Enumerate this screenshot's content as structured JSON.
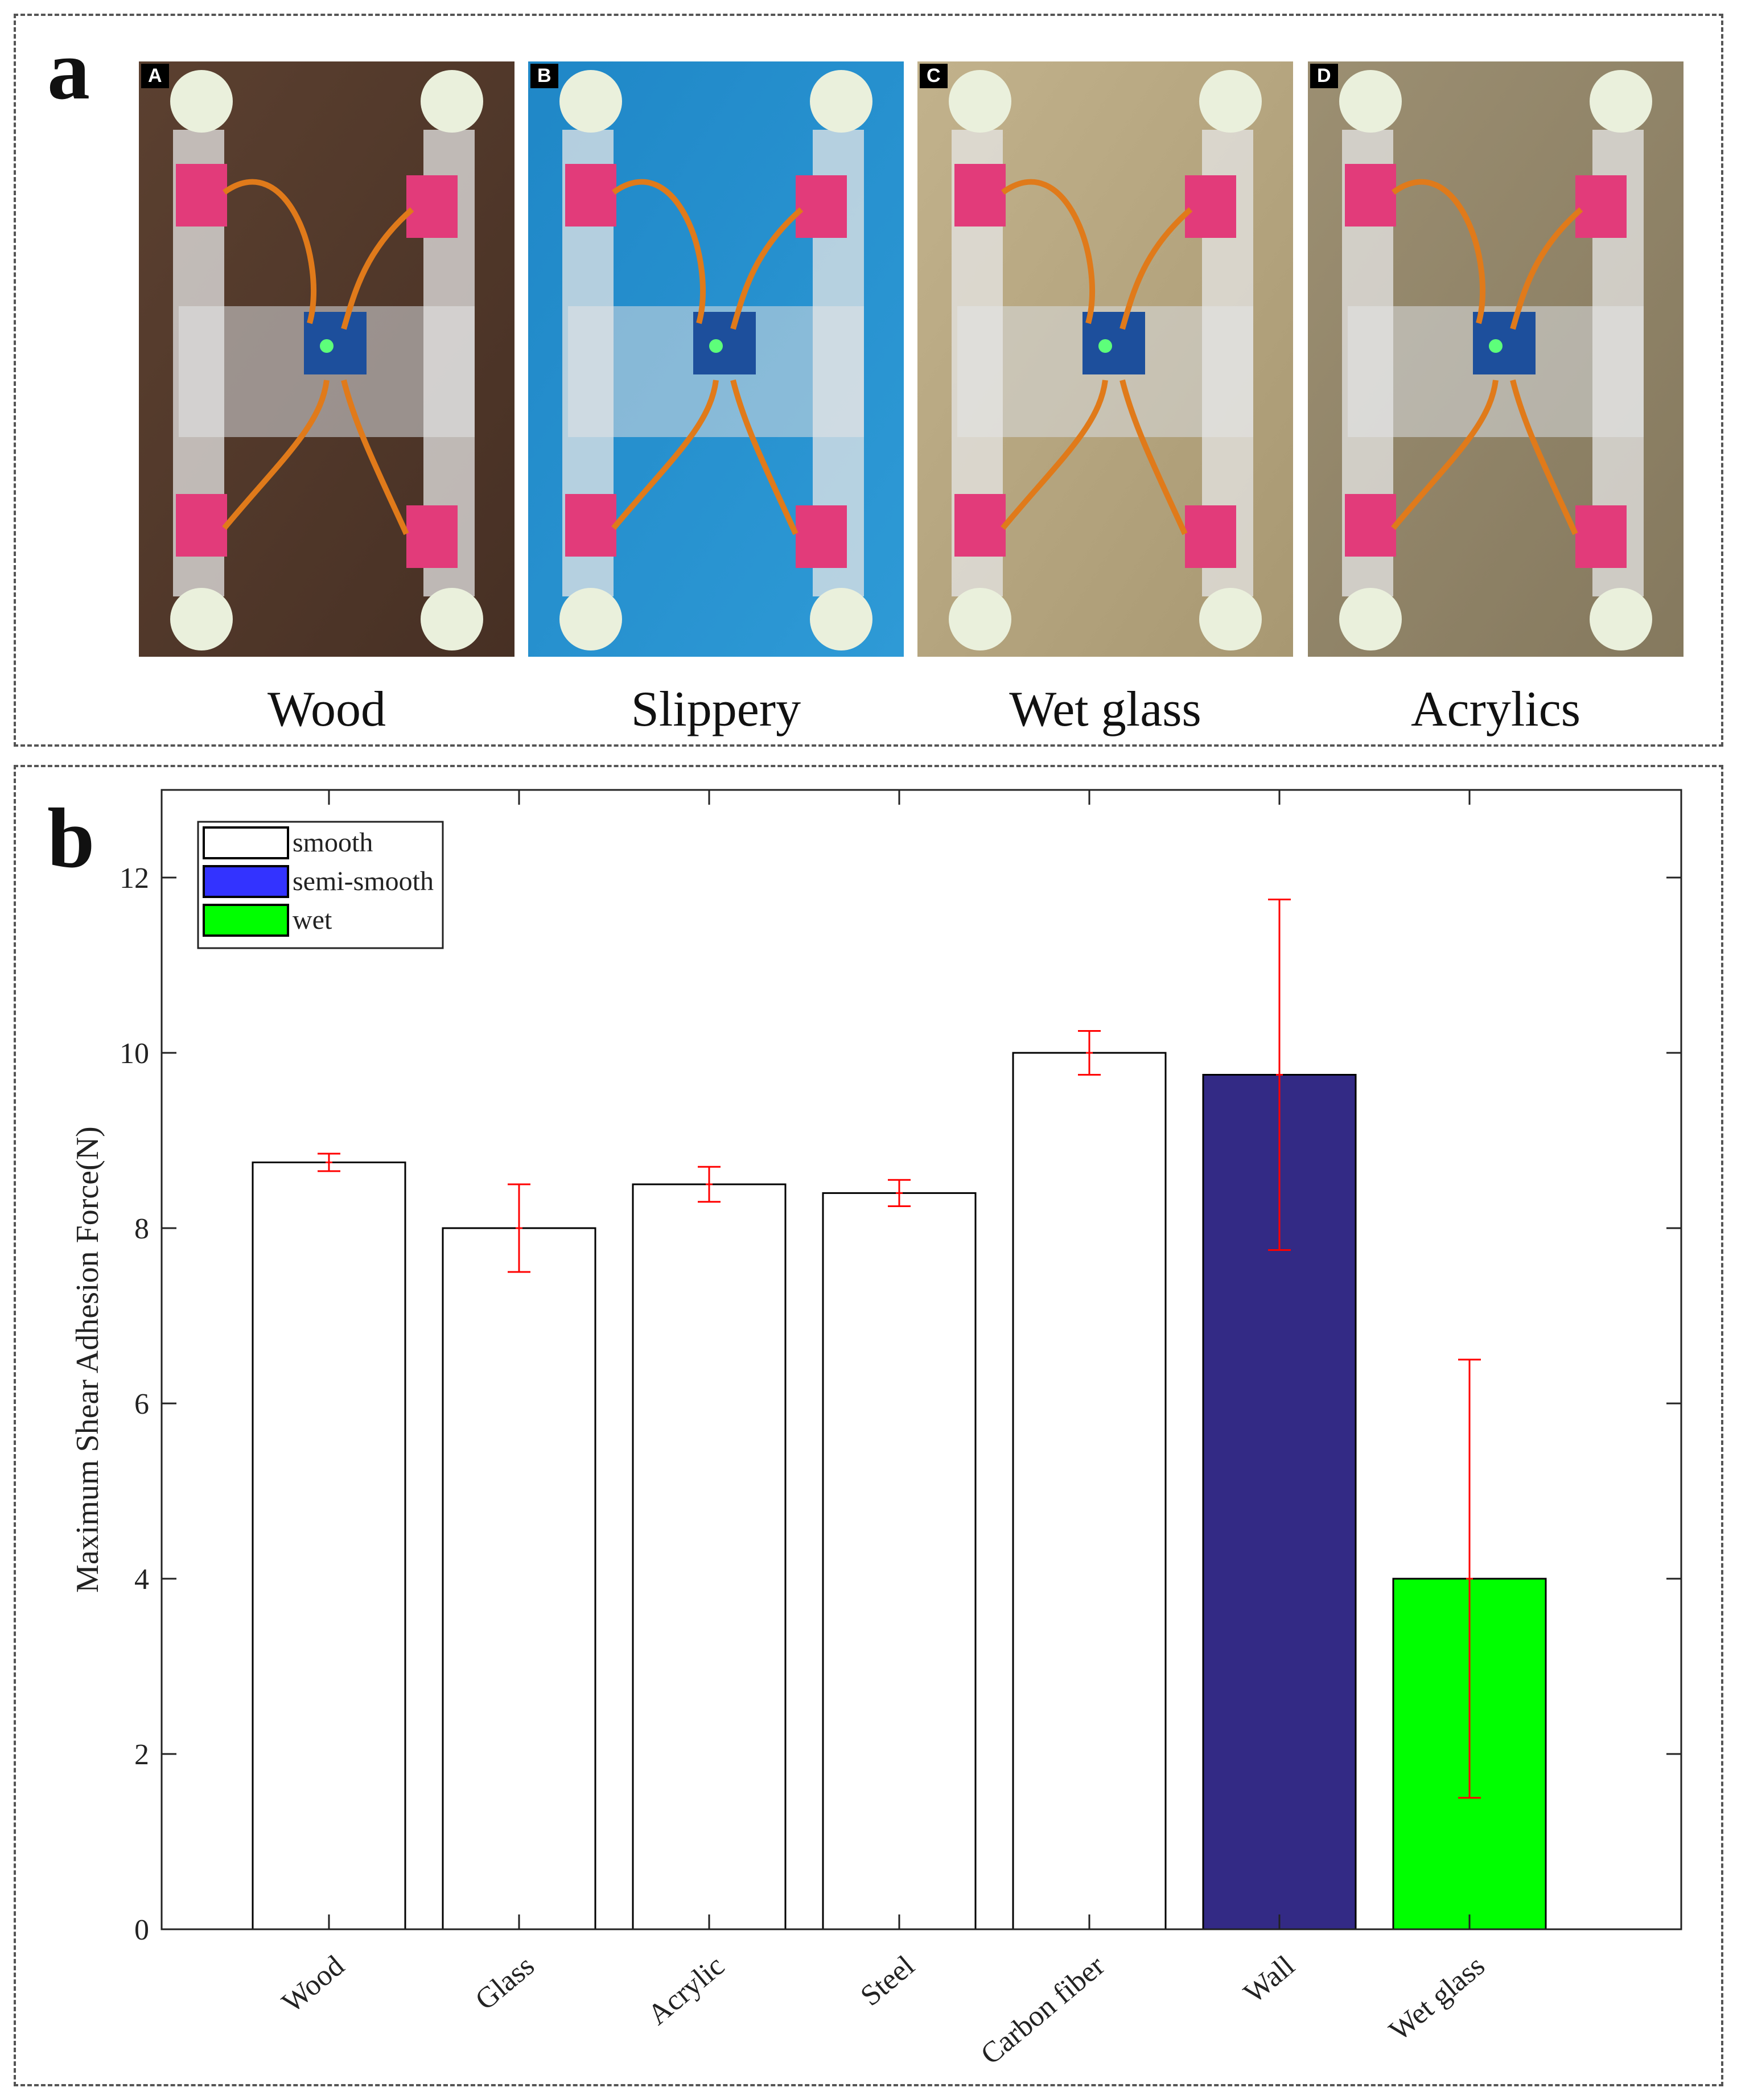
{
  "panel_a": {
    "letter": "a",
    "photos": [
      {
        "tag": "A",
        "caption": "Wood",
        "background": "#5b4030",
        "background2": "#473024"
      },
      {
        "tag": "B",
        "caption": "Slippery",
        "background": "#1f87c7",
        "background2": "#2e9ad6"
      },
      {
        "tag": "C",
        "caption": "Wet glass",
        "background": "#c2b28c",
        "background2": "#a89872"
      },
      {
        "tag": "D",
        "caption": "Acrylics",
        "background": "#9c8f72",
        "background2": "#85795e"
      }
    ]
  },
  "panel_b": {
    "letter": "b"
  },
  "chart_data": {
    "type": "bar",
    "title": "",
    "xlabel": "",
    "ylabel": "Maximum Shear Adhesion Force(N)",
    "categories": [
      "Wood",
      "Glass",
      "Acrylic",
      "Steel",
      "Carbon fiber",
      "Wall",
      "Wet glass"
    ],
    "values": [
      8.75,
      8.0,
      8.5,
      8.4,
      10.0,
      9.75,
      4.0
    ],
    "error_low": [
      8.65,
      7.5,
      8.3,
      8.25,
      9.75,
      7.75,
      1.5
    ],
    "error_high": [
      8.85,
      8.5,
      8.7,
      8.55,
      10.25,
      11.75,
      6.5
    ],
    "surface_type": [
      "smooth",
      "smooth",
      "smooth",
      "smooth",
      "smooth",
      "semi-smooth",
      "wet"
    ],
    "ylim": [
      0,
      13
    ],
    "yticks": [
      0,
      2,
      4,
      6,
      8,
      10,
      12
    ],
    "grid": false,
    "legend_position": "top-left",
    "legend": [
      {
        "name": "smooth",
        "color": "#ffffff"
      },
      {
        "name": "semi-smooth",
        "color": "#3333ff"
      },
      {
        "name": "wet",
        "color": "#00ff00"
      }
    ],
    "bar_colors": {
      "smooth": "#ffffff",
      "semi-smooth": "#332a85",
      "wet": "#00ff00"
    },
    "error_bar_color": "#ff0000"
  }
}
